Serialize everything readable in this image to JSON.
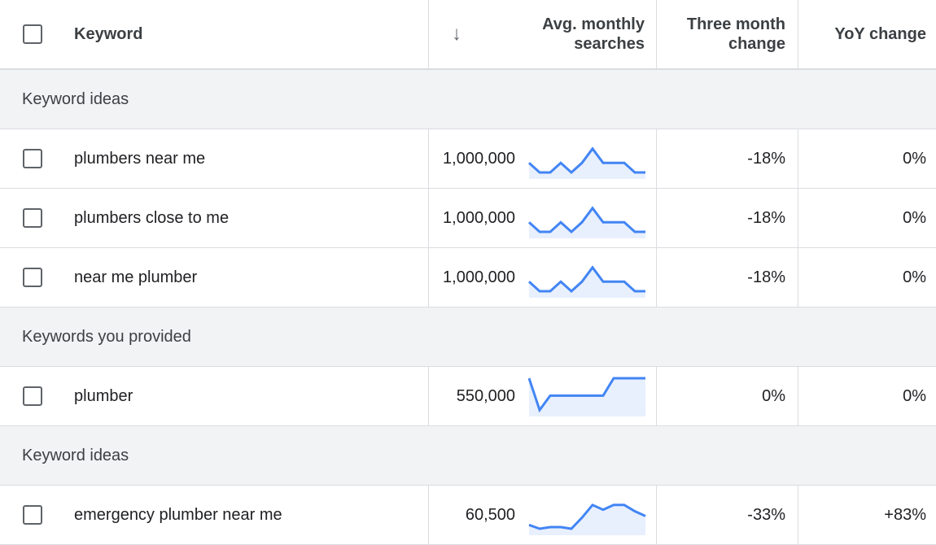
{
  "header": {
    "keyword": "Keyword",
    "sort_icon": "arrow-down-icon",
    "avg_line1": "Avg. monthly",
    "avg_line2": "searches",
    "three_line1": "Three month",
    "three_line2": "change",
    "yoy": "YoY change"
  },
  "colors": {
    "spark_line": "#4285f4",
    "spark_fill": "#e8f0fe",
    "group_bg": "#f1f3f4"
  },
  "groups": [
    {
      "label": "Keyword ideas",
      "rows": [
        {
          "keyword": "plumbers near me",
          "volume": "1,000,000",
          "three_month": "-18%",
          "yoy": "0%",
          "trend": [
            0.3,
            0.0,
            0.0,
            0.3,
            0.0,
            0.3,
            0.75,
            0.3,
            0.3,
            0.3,
            0.0,
            0.0
          ]
        },
        {
          "keyword": "plumbers close to me",
          "volume": "1,000,000",
          "three_month": "-18%",
          "yoy": "0%",
          "trend": [
            0.3,
            0.0,
            0.0,
            0.3,
            0.0,
            0.3,
            0.75,
            0.3,
            0.3,
            0.3,
            0.0,
            0.0
          ]
        },
        {
          "keyword": "near me plumber",
          "volume": "1,000,000",
          "three_month": "-18%",
          "yoy": "0%",
          "trend": [
            0.3,
            0.0,
            0.0,
            0.3,
            0.0,
            0.3,
            0.75,
            0.3,
            0.3,
            0.3,
            0.0,
            0.0
          ]
        }
      ]
    },
    {
      "label": "Keywords you provided",
      "rows": [
        {
          "keyword": "plumber",
          "volume": "550,000",
          "three_month": "0%",
          "yoy": "0%",
          "trend": [
            1.0,
            0.0,
            0.45,
            0.45,
            0.45,
            0.45,
            0.45,
            0.45,
            1.0,
            1.0,
            1.0,
            1.0
          ]
        }
      ]
    },
    {
      "label": "Keyword ideas",
      "rows": [
        {
          "keyword": "emergency plumber near me",
          "volume": "60,500",
          "three_month": "-33%",
          "yoy": "+83%",
          "trend": [
            0.12,
            0.0,
            0.05,
            0.05,
            0.0,
            0.35,
            0.75,
            0.6,
            0.75,
            0.75,
            0.55,
            0.4
          ]
        }
      ]
    }
  ]
}
